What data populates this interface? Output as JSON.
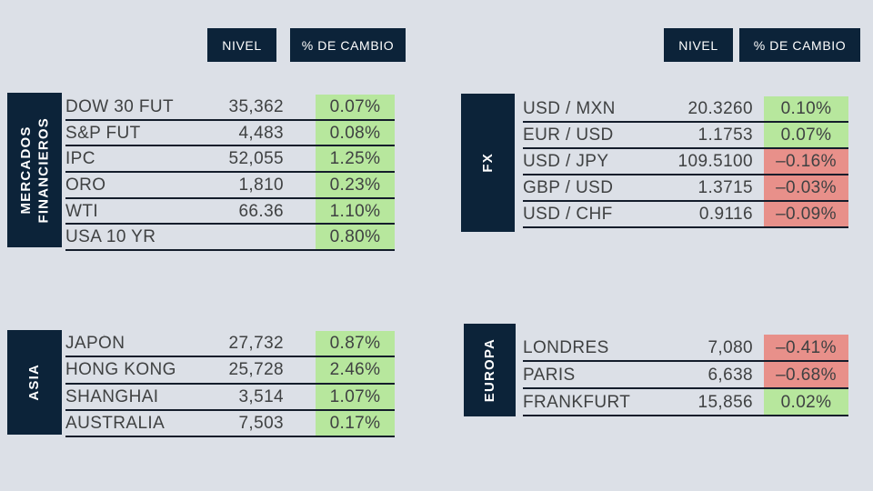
{
  "colors": {
    "background": "#dce0e7",
    "navy": "#0c2339",
    "green": "#b7e79d",
    "red": "#e8908a",
    "text": "#3f4142",
    "line": "#141d2b"
  },
  "column_headers": {
    "nivel": "NIVEL",
    "cambio": "% DE CAMBIO"
  },
  "chart_data": [
    {
      "type": "table",
      "id": "mercados-financieros",
      "section_label": "MERCADOS\nFINANCIEROS",
      "columns": [
        "NIVEL",
        "% DE CAMBIO"
      ],
      "rows": [
        {
          "name": "DOW 30 FUT",
          "level": "35,362",
          "change": "0.07%",
          "direction": "up"
        },
        {
          "name": "S&P FUT",
          "level": "4,483",
          "change": "0.08%",
          "direction": "up"
        },
        {
          "name": "IPC",
          "level": "52,055",
          "change": "1.25%",
          "direction": "up"
        },
        {
          "name": "ORO",
          "level": "1,810",
          "change": "0.23%",
          "direction": "up"
        },
        {
          "name": "WTI",
          "level": "66.36",
          "change": "1.10%",
          "direction": "up"
        },
        {
          "name": "USA 10 YR",
          "level": "",
          "change": "0.80%",
          "direction": "up"
        }
      ]
    },
    {
      "type": "table",
      "id": "fx",
      "section_label": "FX",
      "columns": [
        "NIVEL",
        "% DE CAMBIO"
      ],
      "rows": [
        {
          "name": "USD / MXN",
          "level": "20.3260",
          "change": "0.10%",
          "direction": "up"
        },
        {
          "name": "EUR / USD",
          "level": "1.1753",
          "change": "0.07%",
          "direction": "up"
        },
        {
          "name": "USD / JPY",
          "level": "109.5100",
          "change": "–0.16%",
          "direction": "down"
        },
        {
          "name": "GBP / USD",
          "level": "1.3715",
          "change": "–0.03%",
          "direction": "down"
        },
        {
          "name": "USD / CHF",
          "level": "0.9116",
          "change": "–0.09%",
          "direction": "down"
        }
      ]
    },
    {
      "type": "table",
      "id": "asia",
      "section_label": "ASIA",
      "columns": [
        "NIVEL",
        "% DE CAMBIO"
      ],
      "rows": [
        {
          "name": "JAPÓN",
          "level": "27,732",
          "change": "0.87%",
          "direction": "up"
        },
        {
          "name": "HONG KONG",
          "level": "25,728",
          "change": "2.46%",
          "direction": "up"
        },
        {
          "name": "SHANGHAI",
          "level": "3,514",
          "change": "1.07%",
          "direction": "up"
        },
        {
          "name": "AUSTRALIA",
          "level": "7,503",
          "change": "0.17%",
          "direction": "up"
        }
      ]
    },
    {
      "type": "table",
      "id": "europa",
      "section_label": "EUROPA",
      "columns": [
        "NIVEL",
        "% DE CAMBIO"
      ],
      "rows": [
        {
          "name": "LONDRES",
          "level": "7,080",
          "change": "–0.41%",
          "direction": "down"
        },
        {
          "name": "PARIS",
          "level": "6,638",
          "change": "–0.68%",
          "direction": "down"
        },
        {
          "name": "FRANKFURT",
          "level": "15,856",
          "change": "0.02%",
          "direction": "up"
        }
      ]
    }
  ]
}
